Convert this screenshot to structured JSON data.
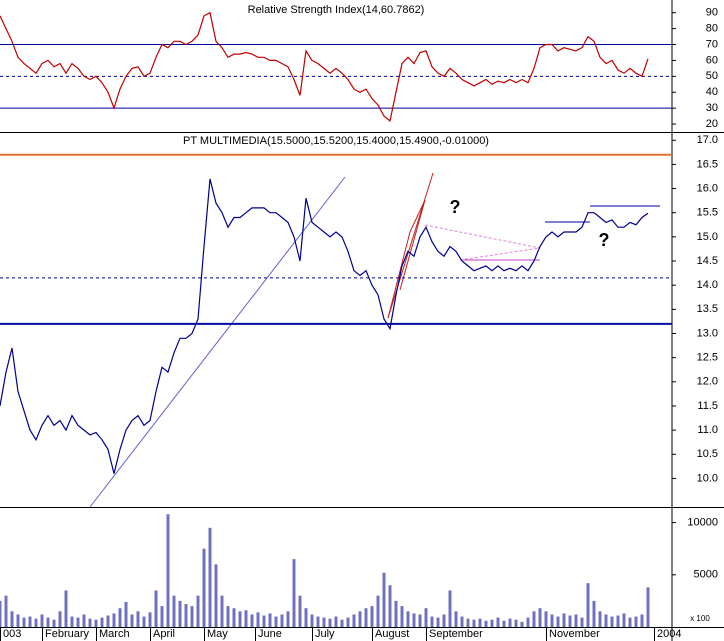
{
  "chart_data": [
    {
      "type": "line",
      "title": "Relative Strength Index(14,60.7862)",
      "xlim": [
        0,
        112
      ],
      "ylim": [
        15,
        98
      ],
      "yticks": [
        20,
        30,
        40,
        50,
        60,
        70,
        80,
        90
      ],
      "hlines": [
        {
          "value": 70,
          "color": "#0000a0",
          "dash": false
        },
        {
          "value": 50,
          "color": "#0000a0",
          "dash": true
        },
        {
          "value": 30,
          "color": "#0000a0",
          "dash": false
        }
      ],
      "series": [
        {
          "name": "RSI",
          "color": "#c00000",
          "values": [
            88,
            80,
            72,
            62,
            58,
            55,
            52,
            58,
            60,
            56,
            58,
            52,
            58,
            55,
            50,
            48,
            50,
            46,
            40,
            30,
            42,
            50,
            55,
            56,
            50,
            52,
            62,
            70,
            68,
            72,
            72,
            70,
            72,
            76,
            88,
            90,
            72,
            68,
            62,
            64,
            64,
            65,
            64,
            62,
            62,
            60,
            60,
            58,
            56,
            48,
            38,
            66,
            60,
            58,
            55,
            52,
            55,
            52,
            48,
            42,
            40,
            42,
            36,
            32,
            25,
            22,
            40,
            58,
            62,
            58,
            65,
            66,
            56,
            52,
            50,
            55,
            52,
            48,
            46,
            44,
            46,
            48,
            45,
            47,
            46,
            48,
            46,
            48,
            46,
            55,
            68,
            70,
            70,
            66,
            68,
            67,
            66,
            68,
            75,
            72,
            62,
            58,
            60,
            54,
            52,
            55,
            52,
            50,
            61
          ]
        }
      ]
    },
    {
      "type": "line",
      "title": "PT MULTIMEDIA(15.5000,15.5200,15.4000,15.4900,-0.01000)",
      "xlim": [
        0,
        112
      ],
      "ylim": [
        9.45,
        17.15
      ],
      "yticks": [
        {
          "value": 10,
          "label": "10.0"
        },
        10.5,
        {
          "value": 11,
          "label": "11.0"
        },
        11.5,
        {
          "value": 12,
          "label": "12.0"
        },
        12.5,
        {
          "value": 13,
          "label": "13.0"
        },
        13.5,
        {
          "value": 14,
          "label": "14.0"
        },
        14.5,
        {
          "value": 15,
          "label": "15.0"
        },
        15.5,
        {
          "value": 16,
          "label": "16.0"
        },
        16.5,
        {
          "value": 17,
          "label": "17.0"
        }
      ],
      "hlines": [
        {
          "value": 16.7,
          "color": "#e07030",
          "dash": false
        },
        {
          "value": 13.2,
          "color": "#0010a0",
          "dash": false
        },
        {
          "value": 14.15,
          "color": "#0000a0",
          "dash": true
        }
      ],
      "annotations": [
        {
          "text": "?",
          "color": "#e02020"
        },
        {
          "text": "?",
          "color": "#1010e0"
        }
      ],
      "series": [
        {
          "name": "PT MULTIMEDIA",
          "color": "#000090",
          "values": [
            11.5,
            12.2,
            12.7,
            11.8,
            11.4,
            11.0,
            10.8,
            11.1,
            11.3,
            11.1,
            11.2,
            11.0,
            11.3,
            11.1,
            11.0,
            10.9,
            10.95,
            10.8,
            10.6,
            10.1,
            10.6,
            11.0,
            11.2,
            11.3,
            11.1,
            11.2,
            11.8,
            12.3,
            12.2,
            12.6,
            12.9,
            12.9,
            13.0,
            13.3,
            14.8,
            16.2,
            15.7,
            15.5,
            15.2,
            15.4,
            15.4,
            15.5,
            15.6,
            15.6,
            15.6,
            15.5,
            15.5,
            15.4,
            15.3,
            15.0,
            14.5,
            15.8,
            15.3,
            15.2,
            15.1,
            15.0,
            15.1,
            15.0,
            14.7,
            14.3,
            14.2,
            14.3,
            14.0,
            13.8,
            13.3,
            13.1,
            13.8,
            14.4,
            14.7,
            14.6,
            15.0,
            15.2,
            14.9,
            14.7,
            14.6,
            14.8,
            14.7,
            14.5,
            14.4,
            14.3,
            14.35,
            14.4,
            14.3,
            14.4,
            14.3,
            14.35,
            14.3,
            14.4,
            14.3,
            14.5,
            14.8,
            15.0,
            15.1,
            15.0,
            15.1,
            15.1,
            15.1,
            15.2,
            15.5,
            15.5,
            15.4,
            15.3,
            15.35,
            15.2,
            15.2,
            15.3,
            15.25,
            15.4,
            15.49
          ]
        }
      ]
    },
    {
      "type": "bar",
      "unit_label": "x 100",
      "xlim": [
        0,
        112
      ],
      "ylim": [
        0,
        11400
      ],
      "yticks": [
        5000,
        10000
      ],
      "xticks": [
        {
          "value": 0,
          "label": "003"
        },
        {
          "value": 7,
          "label": "February"
        },
        {
          "value": 16,
          "label": "March"
        },
        {
          "value": 25,
          "label": "April"
        },
        {
          "value": 34,
          "label": "May"
        },
        {
          "value": 42.5,
          "label": "June"
        },
        {
          "value": 52,
          "label": "July"
        },
        {
          "value": 62,
          "label": "August"
        },
        {
          "value": 71,
          "label": "September"
        },
        {
          "value": 91,
          "label": "November"
        },
        {
          "value": 109,
          "label": "2004"
        }
      ],
      "series": [
        {
          "name": "Volume",
          "color": "#7070c0",
          "values": [
            2500,
            3000,
            1500,
            1200,
            900,
            1000,
            800,
            1200,
            900,
            700,
            1500,
            3500,
            1000,
            900,
            1200,
            800,
            700,
            900,
            1100,
            1300,
            1800,
            2400,
            1200,
            1500,
            1000,
            1400,
            3500,
            2000,
            10800,
            3000,
            2500,
            2200,
            2000,
            3000,
            7500,
            9500,
            6000,
            3000,
            2000,
            1800,
            1500,
            1600,
            1200,
            1400,
            1100,
            1300,
            1000,
            1200,
            1500,
            6500,
            3000,
            1800,
            1200,
            1000,
            900,
            800,
            1000,
            700,
            900,
            1200,
            1500,
            1800,
            2000,
            3000,
            5200,
            4000,
            2500,
            2000,
            1500,
            1300,
            1200,
            1800,
            1000,
            900,
            1200,
            3500,
            1500,
            1000,
            800,
            700,
            800,
            600,
            700,
            900,
            600,
            800,
            700,
            500,
            900,
            1500,
            1800,
            1500,
            1200,
            1000,
            1300,
            1100,
            1200,
            900,
            4200,
            2500,
            1500,
            1200,
            1000,
            1100,
            1300,
            900,
            1000,
            1200,
            3800
          ]
        }
      ]
    }
  ]
}
